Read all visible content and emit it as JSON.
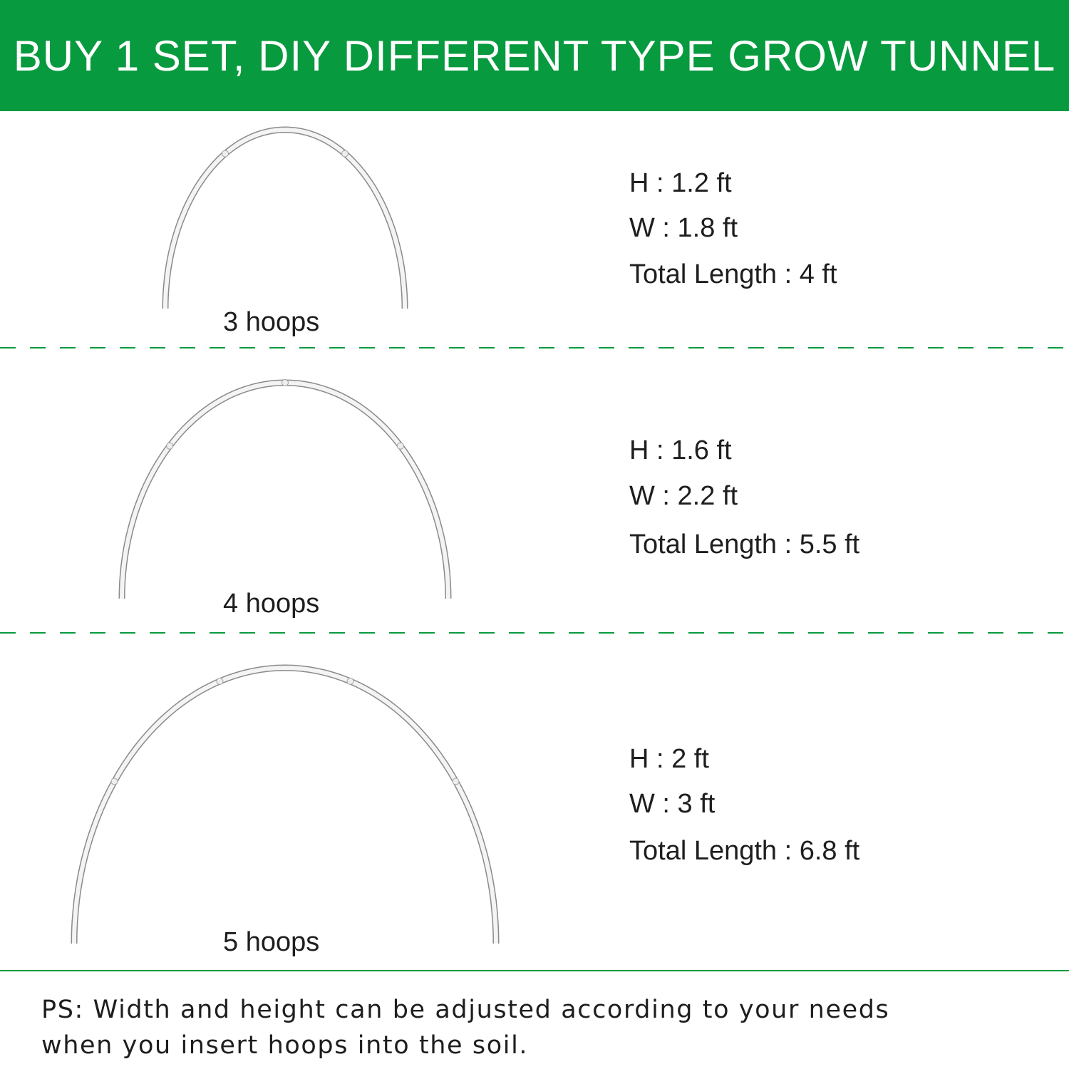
{
  "header": {
    "title": "BUY 1 SET, DIY DIFFERENT TYPE GROW TUNNEL",
    "background_color": "#079a3e",
    "text_color": "#ffffff"
  },
  "accent_color": "#079a3e",
  "hoop_color": "#f4f4f4",
  "hoop_outline_color": "#8a8a8a",
  "configurations": [
    {
      "label": "3 hoops",
      "segments": 3,
      "height": "H : 1.2 ft",
      "width": "W : 1.8 ft",
      "total_length": "Total Length : 4 ft"
    },
    {
      "label": "4 hoops",
      "segments": 4,
      "height": "H : 1.6 ft",
      "width": "W : 2.2 ft",
      "total_length": "Total Length : 5.5 ft"
    },
    {
      "label": "5 hoops",
      "segments": 5,
      "height": "H : 2 ft",
      "width": "W : 3 ft",
      "total_length": "Total Length : 6.8 ft"
    }
  ],
  "note": {
    "line1": "PS: Width and height can be adjusted according to your needs",
    "line2": "when you insert hoops into the soil."
  }
}
